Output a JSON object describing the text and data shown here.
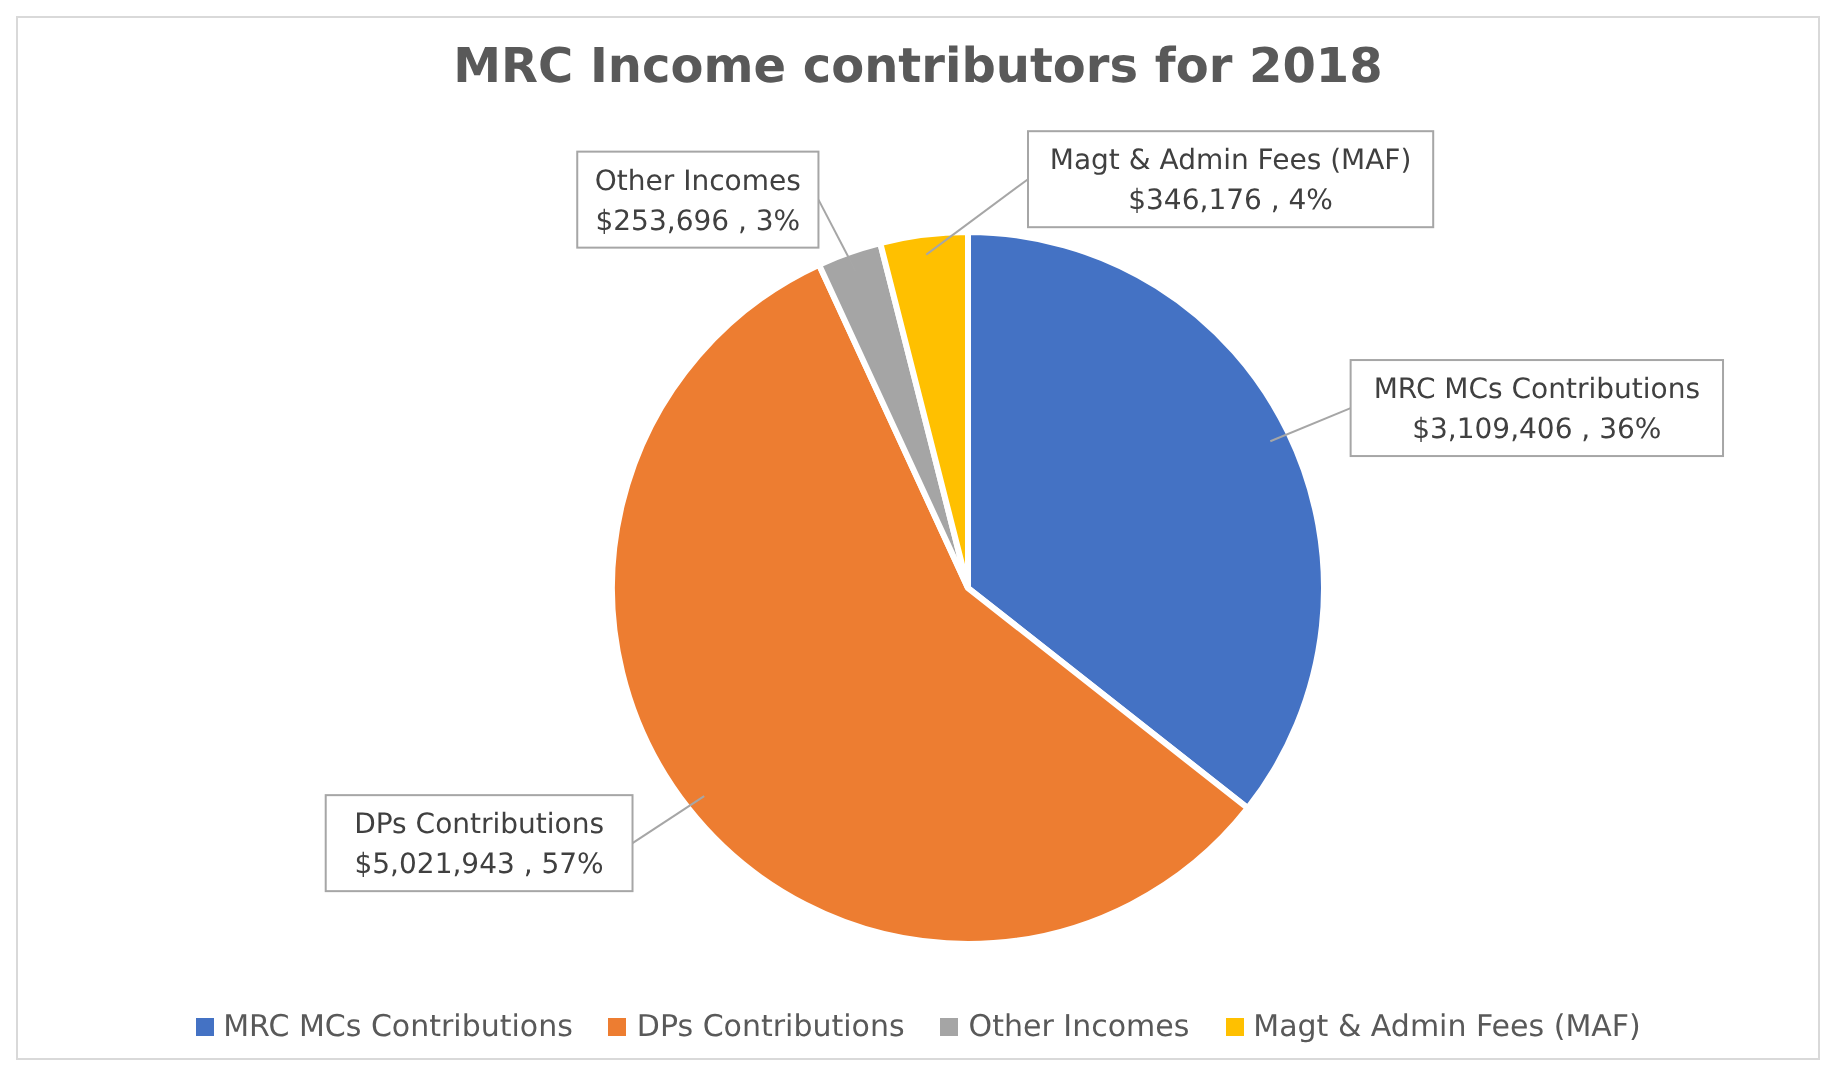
{
  "chart_data": {
    "type": "pie",
    "title": "MRC Income contributors for 2018",
    "categories": [
      "MRC MCs Contributions",
      "DPs Contributions",
      "Other Incomes",
      "Magt & Admin Fees (MAF)"
    ],
    "values": [
      3109406,
      5021943,
      253696,
      346176
    ],
    "colors": [
      "#4472c4",
      "#ed7d31",
      "#a5a5a5",
      "#ffc000"
    ],
    "value_labels": [
      "$3,109,406 , 36%",
      "$5,021,943 , 57%",
      "$253,696 , 3%",
      "$346,176 , 4%"
    ],
    "legend": "bottom"
  }
}
